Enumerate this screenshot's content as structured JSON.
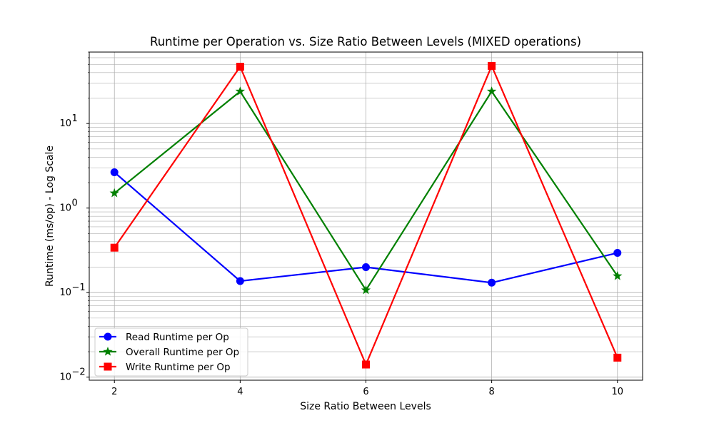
{
  "chart_data": {
    "type": "line",
    "title": "Runtime per Operation vs. Size Ratio Between Levels (MIXED operations)",
    "xlabel": "Size Ratio Between Levels",
    "ylabel": "Runtime (ms/op) - Log Scale",
    "yscale": "log",
    "x": [
      2,
      4,
      6,
      8,
      10
    ],
    "xticks": [
      "2",
      "4",
      "6",
      "8",
      "10"
    ],
    "xlim": [
      1.6,
      10.4
    ],
    "ylim": [
      0.0092,
      70
    ],
    "yticks": [
      {
        "value": 0.01,
        "base": "10",
        "exp": "−2"
      },
      {
        "value": 0.1,
        "base": "10",
        "exp": "−1"
      },
      {
        "value": 1,
        "base": "10",
        "exp": "0"
      },
      {
        "value": 10,
        "base": "10",
        "exp": "1"
      }
    ],
    "grid": true,
    "legend_position": "lower-left",
    "series": [
      {
        "name": "Read Runtime per Op",
        "color": "#0000ff",
        "marker": "circle",
        "values": [
          2.65,
          0.137,
          0.2,
          0.131,
          0.295
        ]
      },
      {
        "name": "Overall Runtime per Op",
        "color": "#008000",
        "marker": "star",
        "values": [
          1.5,
          24,
          0.107,
          24,
          0.157
        ]
      },
      {
        "name": "Write Runtime per Op",
        "color": "#ff0000",
        "marker": "square",
        "values": [
          0.34,
          47,
          0.0141,
          48,
          0.017
        ]
      }
    ]
  }
}
